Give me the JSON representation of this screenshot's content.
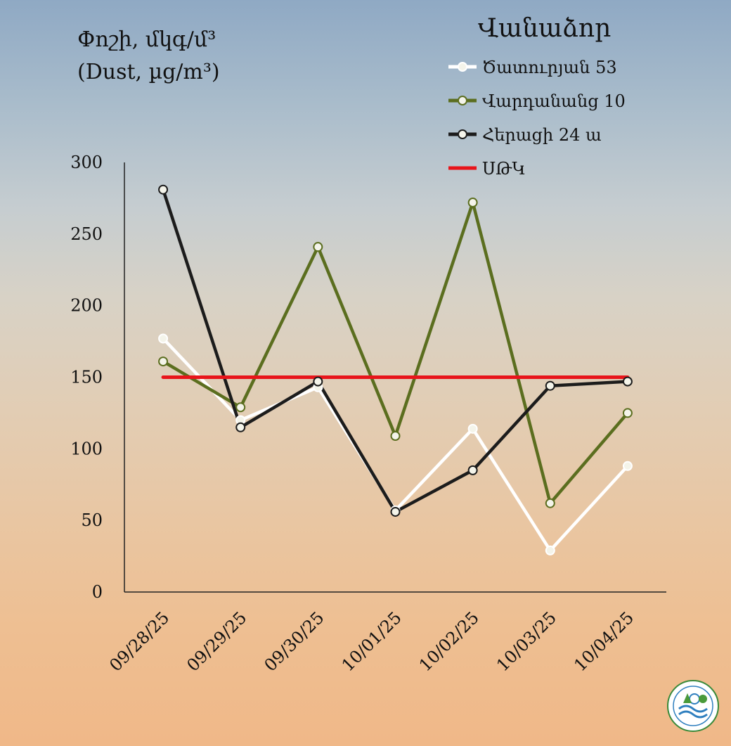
{
  "chart_data": {
    "type": "line",
    "ylabel_line1": "Փոշի, մկգ/մ³",
    "ylabel_line2": "(Dust, µg/m³)",
    "legend_title": "Վանաձոր",
    "categories": [
      "09/28/25",
      "09/29/25",
      "09/30/25",
      "10/01/25",
      "10/02/25",
      "10/03/25",
      "10/04/25"
    ],
    "ylim": [
      0,
      300
    ],
    "yticks": [
      0,
      50,
      100,
      150,
      200,
      250,
      300
    ],
    "grid": false,
    "legend_position": "top-right",
    "series": [
      {
        "name": "Ծատուրյան 53",
        "color": "#ffffff",
        "marker": true,
        "values": [
          177,
          120,
          143,
          57,
          114,
          29,
          88
        ]
      },
      {
        "name": "Վարդանանց 10",
        "color": "#5b6e1f",
        "marker": true,
        "values": [
          161,
          129,
          241,
          109,
          272,
          62,
          125
        ]
      },
      {
        "name": "Հերացի 24 ա",
        "color": "#1c1c1c",
        "marker": true,
        "values": [
          281,
          115,
          147,
          56,
          85,
          144,
          147
        ]
      },
      {
        "name": "ՍԹԿ",
        "color": "#e8141a",
        "marker": false,
        "values": [
          150,
          150,
          150,
          150,
          150,
          150,
          150
        ]
      }
    ]
  }
}
